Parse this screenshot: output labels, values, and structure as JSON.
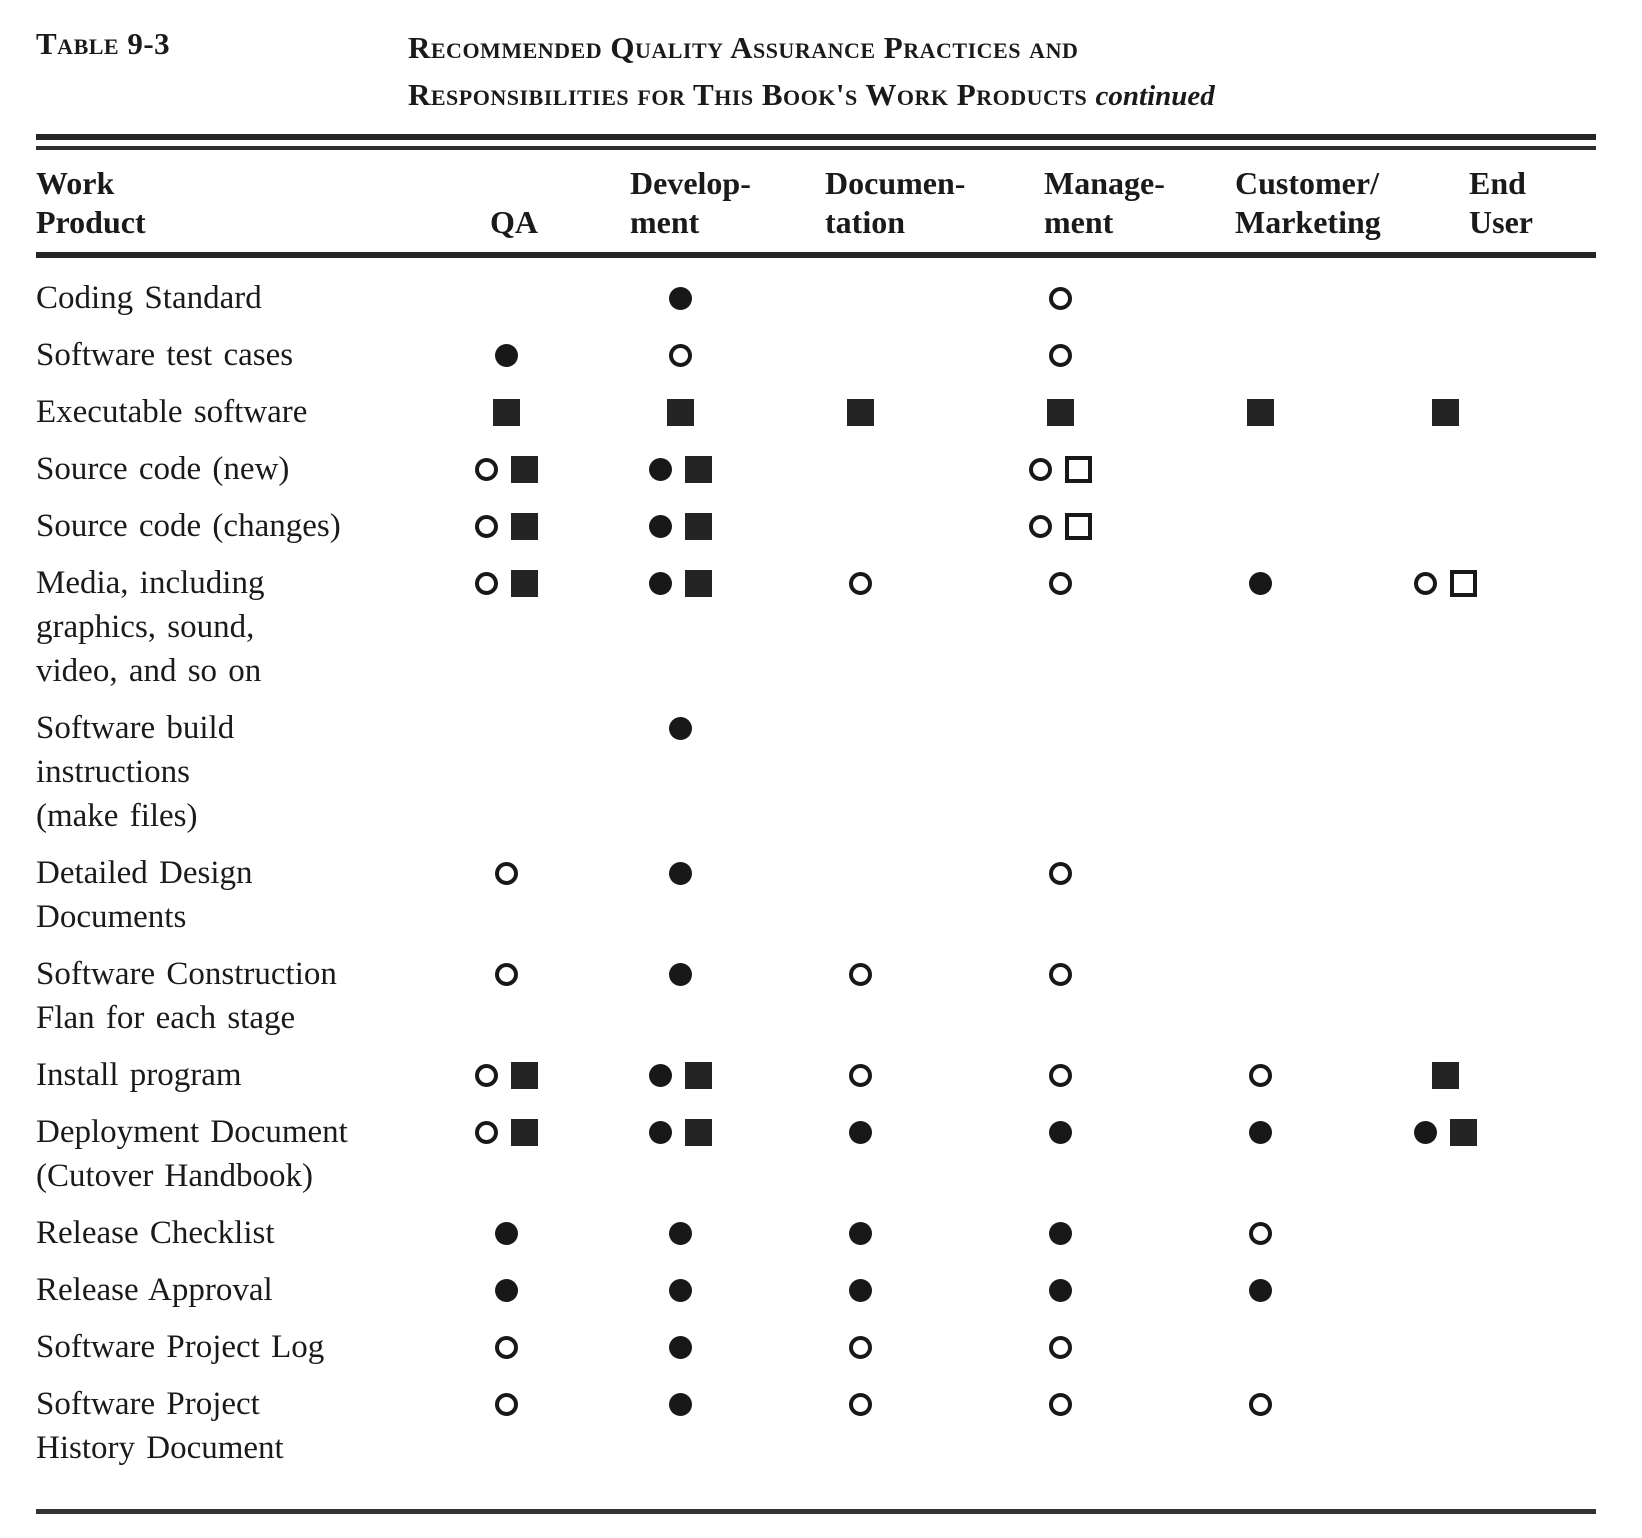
{
  "colors": {
    "ink": "#1a1a1a",
    "paper": "#ffffff"
  },
  "caption": {
    "label": "Table 9-3",
    "title_line1": "Recommended Quality Assurance Practices and",
    "title_line2": "Responsibilities for This Book's Work Products",
    "continued": "continued"
  },
  "symbols": {
    "fc": "filled-circle-icon",
    "oc": "open-circle-icon",
    "fs": "filled-square-icon",
    "os": "open-square-icon"
  },
  "table": {
    "work_product_header": [
      "Work",
      "Product"
    ],
    "columns": [
      {
        "id": "qa",
        "lines": [
          "QA"
        ]
      },
      {
        "id": "development",
        "lines": [
          "Develop-",
          "ment"
        ]
      },
      {
        "id": "documentation",
        "lines": [
          "Documen-",
          "tation"
        ]
      },
      {
        "id": "management",
        "lines": [
          "Manage-",
          "ment"
        ]
      },
      {
        "id": "customer-marketing",
        "lines": [
          "Customer/",
          "Marketing"
        ]
      },
      {
        "id": "end-user",
        "lines": [
          "End",
          "User"
        ]
      }
    ],
    "rows": [
      {
        "label_lines": [
          "Coding Standard"
        ],
        "cells": [
          [],
          [
            "fc"
          ],
          [],
          [
            "oc"
          ],
          [],
          []
        ]
      },
      {
        "label_lines": [
          "Software test cases"
        ],
        "cells": [
          [
            "fc"
          ],
          [
            "oc"
          ],
          [],
          [
            "oc"
          ],
          [],
          []
        ]
      },
      {
        "label_lines": [
          "Executable software"
        ],
        "cells": [
          [
            "fs"
          ],
          [
            "fs"
          ],
          [
            "fs"
          ],
          [
            "fs"
          ],
          [
            "fs"
          ],
          [
            "fs"
          ]
        ]
      },
      {
        "label_lines": [
          "Source code (new)"
        ],
        "cells": [
          [
            "oc",
            "fs"
          ],
          [
            "fc",
            "fs"
          ],
          [],
          [
            "oc",
            "os"
          ],
          [],
          []
        ]
      },
      {
        "label_lines": [
          "Source code (changes)"
        ],
        "cells": [
          [
            "oc",
            "fs"
          ],
          [
            "fc",
            "fs"
          ],
          [],
          [
            "oc",
            "os"
          ],
          [],
          []
        ]
      },
      {
        "label_lines": [
          "Media, including",
          "graphics, sound,",
          "video, and so on"
        ],
        "cells": [
          [
            "oc",
            "fs"
          ],
          [
            "fc",
            "fs"
          ],
          [
            "oc"
          ],
          [
            "oc"
          ],
          [
            "fc"
          ],
          [
            "oc",
            "os"
          ]
        ]
      },
      {
        "label_lines": [
          "Software build",
          "instructions",
          "(make files)"
        ],
        "cells": [
          [],
          [
            "fc"
          ],
          [],
          [],
          [],
          []
        ]
      },
      {
        "label_lines": [
          "Detailed Design",
          "Documents"
        ],
        "cells": [
          [
            "oc"
          ],
          [
            "fc"
          ],
          [],
          [
            "oc"
          ],
          [],
          []
        ]
      },
      {
        "label_lines": [
          "Software Construction",
          "Flan for each stage"
        ],
        "cells": [
          [
            "oc"
          ],
          [
            "fc"
          ],
          [
            "oc"
          ],
          [
            "oc"
          ],
          [],
          []
        ]
      },
      {
        "label_lines": [
          "Install program"
        ],
        "cells": [
          [
            "oc",
            "fs"
          ],
          [
            "fc",
            "fs"
          ],
          [
            "oc"
          ],
          [
            "oc"
          ],
          [
            "oc"
          ],
          [
            "fs"
          ]
        ]
      },
      {
        "label_lines": [
          "Deployment Document",
          "(Cutover Handbook)"
        ],
        "cells": [
          [
            "oc",
            "fs"
          ],
          [
            "fc",
            "fs"
          ],
          [
            "fc"
          ],
          [
            "fc"
          ],
          [
            "fc"
          ],
          [
            "fc",
            "fs"
          ]
        ]
      },
      {
        "label_lines": [
          "Release Checklist"
        ],
        "cells": [
          [
            "fc"
          ],
          [
            "fc"
          ],
          [
            "fc"
          ],
          [
            "fc"
          ],
          [
            "oc"
          ],
          []
        ]
      },
      {
        "label_lines": [
          "Release Approval"
        ],
        "cells": [
          [
            "fc"
          ],
          [
            "fc"
          ],
          [
            "fc"
          ],
          [
            "fc"
          ],
          [
            "fc"
          ],
          []
        ]
      },
      {
        "label_lines": [
          "Software Project Log"
        ],
        "cells": [
          [
            "oc"
          ],
          [
            "fc"
          ],
          [
            "oc"
          ],
          [
            "oc"
          ],
          [],
          []
        ]
      },
      {
        "label_lines": [
          "Software Project",
          "History Document"
        ],
        "cells": [
          [
            "oc"
          ],
          [
            "fc"
          ],
          [
            "oc"
          ],
          [
            "oc"
          ],
          [
            "oc"
          ],
          []
        ]
      }
    ]
  }
}
